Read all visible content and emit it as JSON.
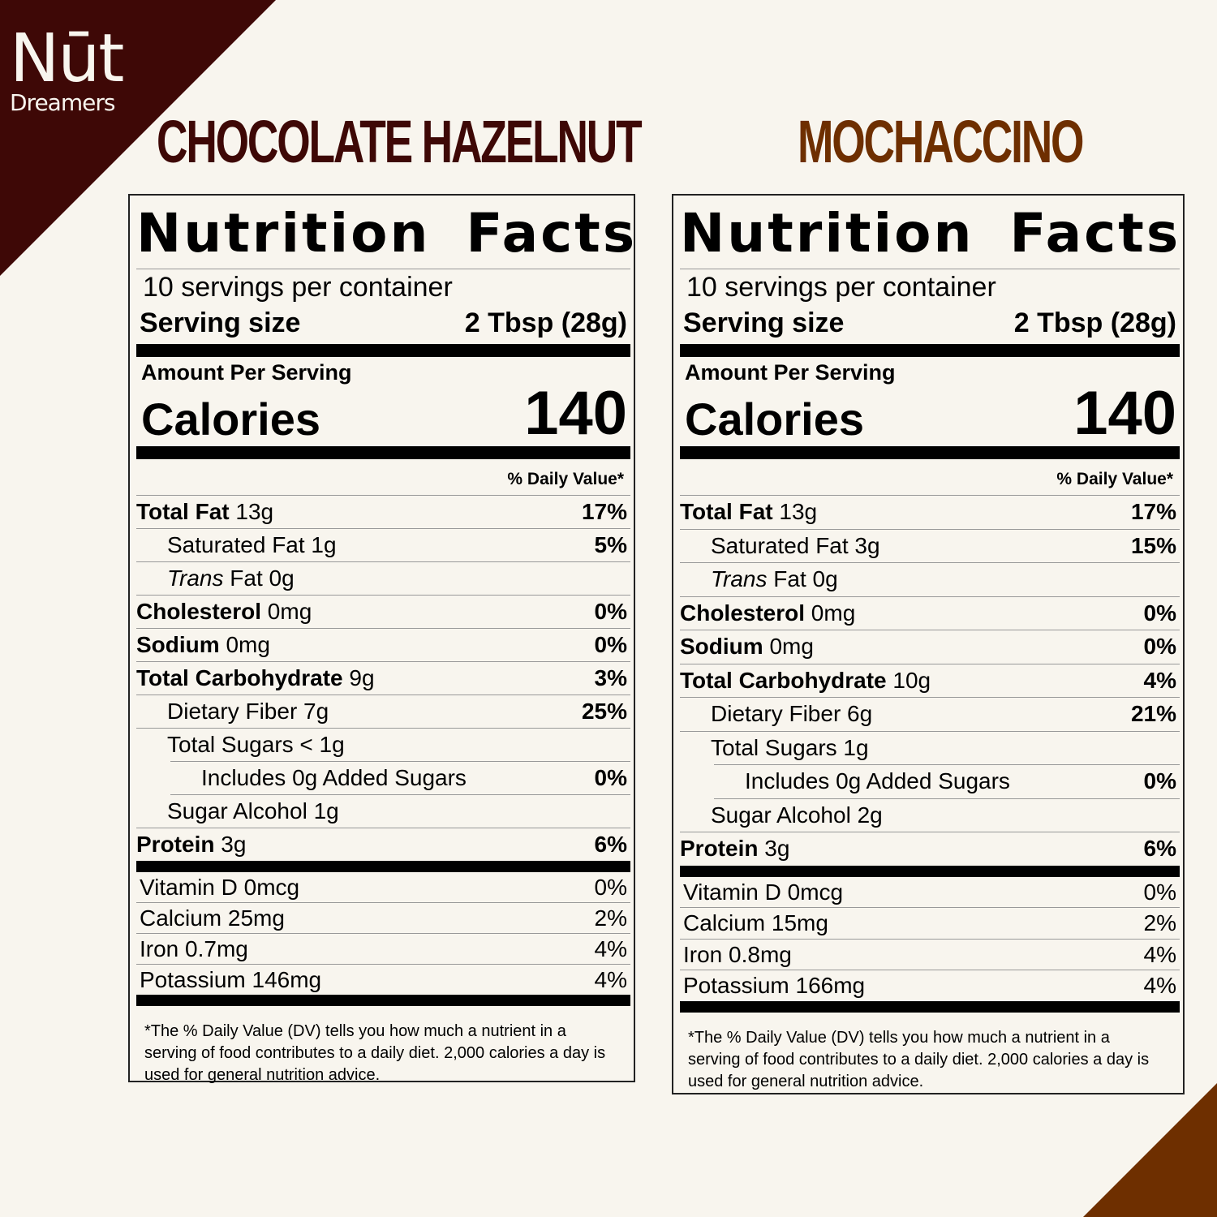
{
  "brand": {
    "logo_line1": "Nūt",
    "logo_line2": "Dreamers",
    "colors": {
      "dark": "#3e0806",
      "accent": "#6e2f00",
      "background": "#f8f5ee"
    }
  },
  "products": [
    {
      "title": "CHOCOLATE HAZELNUT",
      "label": {
        "heading": "Nutrition Facts",
        "servings": "10 servings per container",
        "serving_size_label": "Serving size",
        "serving_size_value": "2 Tbsp (28g)",
        "amount_per_serving": "Amount Per Serving",
        "calories_label": "Calories",
        "calories_value": "140",
        "dv_header": "% Daily Value*",
        "nutrients": [
          {
            "name": "Total Fat",
            "amount": "13g",
            "dv": "17%"
          },
          {
            "name": "Saturated Fat",
            "amount": "1g",
            "dv": "5%"
          },
          {
            "name": "Trans",
            "name2": "Fat",
            "amount": "0g",
            "dv": ""
          },
          {
            "name": "Cholesterol",
            "amount": "0mg",
            "dv": "0%"
          },
          {
            "name": "Sodium",
            "amount": "0mg",
            "dv": "0%"
          },
          {
            "name": "Total Carbohydrate",
            "amount": "9g",
            "dv": "3%"
          },
          {
            "name": "Dietary Fiber",
            "amount": "7g",
            "dv": "25%"
          },
          {
            "name": "Total Sugars",
            "amount": "< 1g",
            "dv": ""
          },
          {
            "name": "Includes 0g Added Sugars",
            "amount": "",
            "dv": "0%"
          },
          {
            "name": "Sugar Alcohol",
            "amount": "1g",
            "dv": ""
          },
          {
            "name": "Protein",
            "amount": "3g",
            "dv": "6%"
          }
        ],
        "vitamins": [
          {
            "name": "Vitamin D 0mcg",
            "dv": "0%"
          },
          {
            "name": "Calcium 25mg",
            "dv": "2%"
          },
          {
            "name": "Iron 0.7mg",
            "dv": "4%"
          },
          {
            "name": "Potassium 146mg",
            "dv": "4%"
          }
        ],
        "footnote": "*The % Daily Value (DV) tells you how much a nutrient in a serving of food contributes to a daily diet. 2,000 calories a day is used for general nutrition advice."
      }
    },
    {
      "title": "MOCHACCINO",
      "label": {
        "heading": "Nutrition Facts",
        "servings": "10 servings per container",
        "serving_size_label": "Serving size",
        "serving_size_value": "2 Tbsp (28g)",
        "amount_per_serving": "Amount Per Serving",
        "calories_label": "Calories",
        "calories_value": "140",
        "dv_header": "% Daily Value*",
        "nutrients": [
          {
            "name": "Total Fat",
            "amount": "13g",
            "dv": "17%"
          },
          {
            "name": "Saturated Fat",
            "amount": "3g",
            "dv": "15%"
          },
          {
            "name": "Trans",
            "name2": "Fat",
            "amount": "0g",
            "dv": ""
          },
          {
            "name": "Cholesterol",
            "amount": "0mg",
            "dv": "0%"
          },
          {
            "name": "Sodium",
            "amount": "0mg",
            "dv": "0%"
          },
          {
            "name": "Total Carbohydrate",
            "amount": "10g",
            "dv": "4%"
          },
          {
            "name": "Dietary Fiber",
            "amount": "6g",
            "dv": "21%"
          },
          {
            "name": "Total Sugars",
            "amount": "1g",
            "dv": ""
          },
          {
            "name": "Includes 0g Added Sugars",
            "amount": "",
            "dv": "0%"
          },
          {
            "name": "Sugar Alcohol",
            "amount": "2g",
            "dv": ""
          },
          {
            "name": "Protein",
            "amount": "3g",
            "dv": "6%"
          }
        ],
        "vitamins": [
          {
            "name": "Vitamin D 0mcg",
            "dv": "0%"
          },
          {
            "name": "Calcium 15mg",
            "dv": "2%"
          },
          {
            "name": "Iron 0.8mg",
            "dv": "4%"
          },
          {
            "name": "Potassium 166mg",
            "dv": "4%"
          }
        ],
        "footnote": "*The % Daily Value (DV) tells you how much a nutrient in a serving of food contributes to a daily diet. 2,000 calories a day is used for general nutrition advice."
      }
    }
  ]
}
